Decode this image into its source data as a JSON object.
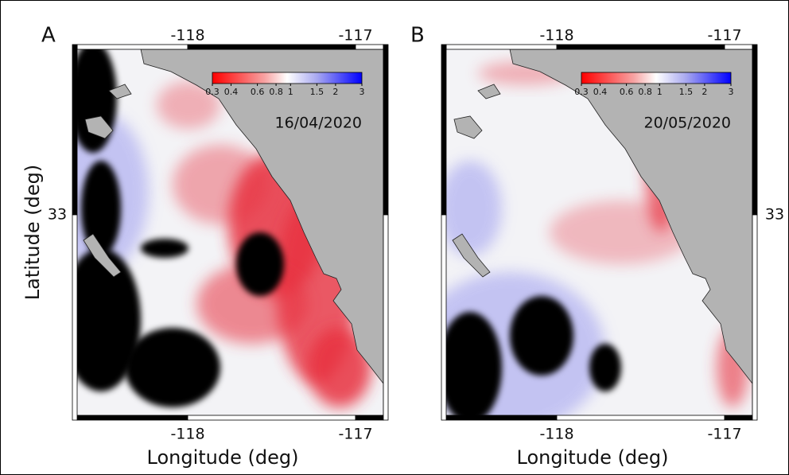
{
  "x_axis_label": "Longitude (deg)",
  "y_axis_label": "Latitude (deg)",
  "colorbar_ticks": [
    0.3,
    0.4,
    0.6,
    0.8,
    1,
    1.5,
    2,
    3
  ],
  "panels": [
    {
      "label": "A",
      "date": "16/04/2020",
      "lon_ticks": [
        "-118",
        "-117"
      ],
      "lat_tick": "33"
    },
    {
      "label": "B",
      "date": "20/05/2020",
      "lon_ticks": [
        "-118",
        "-117"
      ],
      "lat_tick": "33"
    }
  ]
}
